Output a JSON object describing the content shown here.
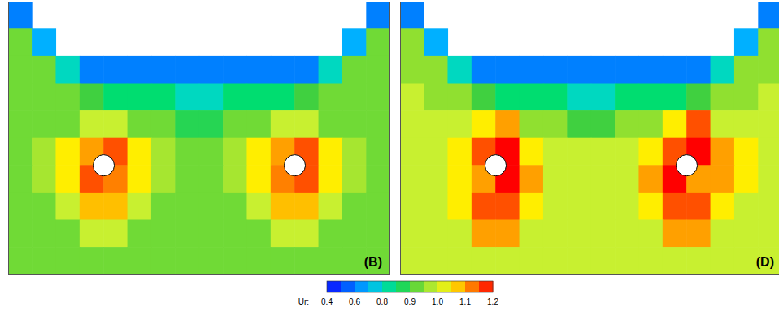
{
  "chart_data": [
    {
      "type": "heatmap",
      "title": "(B)",
      "tick_labels": false,
      "cylinders": [
        [
          4,
          6
        ],
        [
          12,
          6
        ]
      ],
      "cells": [
        [
          0.6,
          null,
          null,
          null,
          null,
          null,
          null,
          null,
          null,
          null,
          null,
          null,
          null,
          null,
          null,
          0.6
        ],
        [
          0.93,
          0.7,
          null,
          null,
          null,
          null,
          null,
          null,
          null,
          null,
          null,
          null,
          null,
          null,
          0.7,
          0.93
        ],
        [
          0.93,
          0.93,
          0.8,
          0.6,
          0.6,
          0.6,
          0.6,
          0.6,
          0.6,
          0.6,
          0.6,
          0.6,
          0.6,
          0.8,
          0.93,
          0.93
        ],
        [
          0.93,
          0.93,
          0.93,
          0.9,
          0.85,
          0.85,
          0.85,
          0.8,
          0.8,
          0.85,
          0.85,
          0.85,
          0.9,
          0.93,
          0.93,
          0.93
        ],
        [
          0.93,
          0.93,
          0.93,
          1.0,
          1.0,
          0.93,
          0.93,
          0.88,
          0.88,
          0.93,
          0.93,
          1.0,
          1.0,
          0.93,
          0.93,
          0.93
        ],
        [
          0.93,
          0.97,
          1.05,
          1.1,
          1.15,
          1.05,
          0.97,
          0.93,
          0.93,
          0.97,
          1.05,
          1.1,
          1.15,
          1.05,
          0.97,
          0.93
        ],
        [
          0.93,
          0.97,
          1.05,
          1.15,
          1.12,
          1.05,
          0.97,
          0.93,
          0.93,
          0.97,
          1.05,
          1.12,
          1.15,
          1.05,
          0.97,
          0.93
        ],
        [
          0.93,
          0.93,
          1.0,
          1.08,
          1.08,
          1.0,
          0.93,
          0.93,
          0.93,
          0.93,
          1.0,
          1.08,
          1.08,
          1.0,
          0.93,
          0.93
        ],
        [
          0.93,
          0.93,
          0.93,
          1.0,
          1.0,
          0.93,
          0.93,
          0.93,
          0.93,
          0.93,
          0.93,
          1.0,
          1.0,
          0.93,
          0.93,
          0.93
        ],
        [
          0.93,
          0.93,
          0.93,
          0.93,
          0.93,
          0.93,
          0.93,
          0.93,
          0.93,
          0.93,
          0.93,
          0.93,
          0.93,
          0.93,
          0.93,
          0.93
        ]
      ]
    },
    {
      "type": "heatmap",
      "title": "(D)",
      "tick_labels": false,
      "cylinders": [
        [
          4,
          6
        ],
        [
          12,
          6
        ]
      ],
      "cells": [
        [
          0.6,
          null,
          null,
          null,
          null,
          null,
          null,
          null,
          null,
          null,
          null,
          null,
          null,
          null,
          null,
          0.6
        ],
        [
          0.95,
          0.7,
          null,
          null,
          null,
          null,
          null,
          null,
          null,
          null,
          null,
          null,
          null,
          null,
          0.7,
          0.95
        ],
        [
          0.95,
          0.95,
          0.8,
          0.6,
          0.6,
          0.6,
          0.6,
          0.6,
          0.6,
          0.6,
          0.6,
          0.6,
          0.6,
          0.8,
          0.95,
          0.95
        ],
        [
          1.0,
          0.95,
          0.95,
          0.9,
          0.85,
          0.85,
          0.85,
          0.8,
          0.8,
          0.85,
          0.85,
          0.85,
          0.9,
          0.95,
          0.95,
          1.0
        ],
        [
          1.0,
          1.0,
          1.0,
          1.05,
          1.1,
          0.95,
          0.95,
          0.9,
          0.9,
          0.95,
          0.95,
          1.05,
          1.15,
          1.0,
          1.0,
          1.0
        ],
        [
          1.0,
          1.0,
          1.05,
          1.15,
          1.2,
          1.05,
          1.0,
          1.0,
          1.0,
          1.0,
          1.05,
          1.15,
          1.2,
          1.1,
          1.05,
          1.0
        ],
        [
          1.0,
          1.0,
          1.05,
          1.1,
          1.2,
          1.1,
          1.0,
          1.0,
          1.0,
          1.0,
          1.1,
          1.2,
          1.1,
          1.1,
          1.05,
          1.0
        ],
        [
          1.0,
          1.0,
          1.05,
          1.15,
          1.15,
          1.05,
          1.0,
          1.0,
          1.0,
          1.0,
          1.05,
          1.15,
          1.15,
          1.05,
          1.0,
          1.0
        ],
        [
          1.0,
          1.0,
          1.0,
          1.1,
          1.1,
          1.0,
          1.0,
          1.0,
          1.0,
          1.0,
          1.0,
          1.1,
          1.1,
          1.0,
          1.0,
          1.0
        ],
        [
          1.0,
          1.0,
          1.0,
          1.0,
          1.0,
          1.0,
          1.0,
          1.0,
          1.0,
          1.0,
          1.0,
          1.0,
          1.0,
          1.0,
          1.0,
          1.0
        ]
      ]
    }
  ],
  "colorbar": {
    "label": "Ur:",
    "range": [
      0.4,
      1.2
    ],
    "ticks": [
      0.4,
      0.6,
      0.8,
      0.9,
      {
        "value": 1,
        "label": "1.0"
      },
      1.1,
      1.2
    ]
  }
}
